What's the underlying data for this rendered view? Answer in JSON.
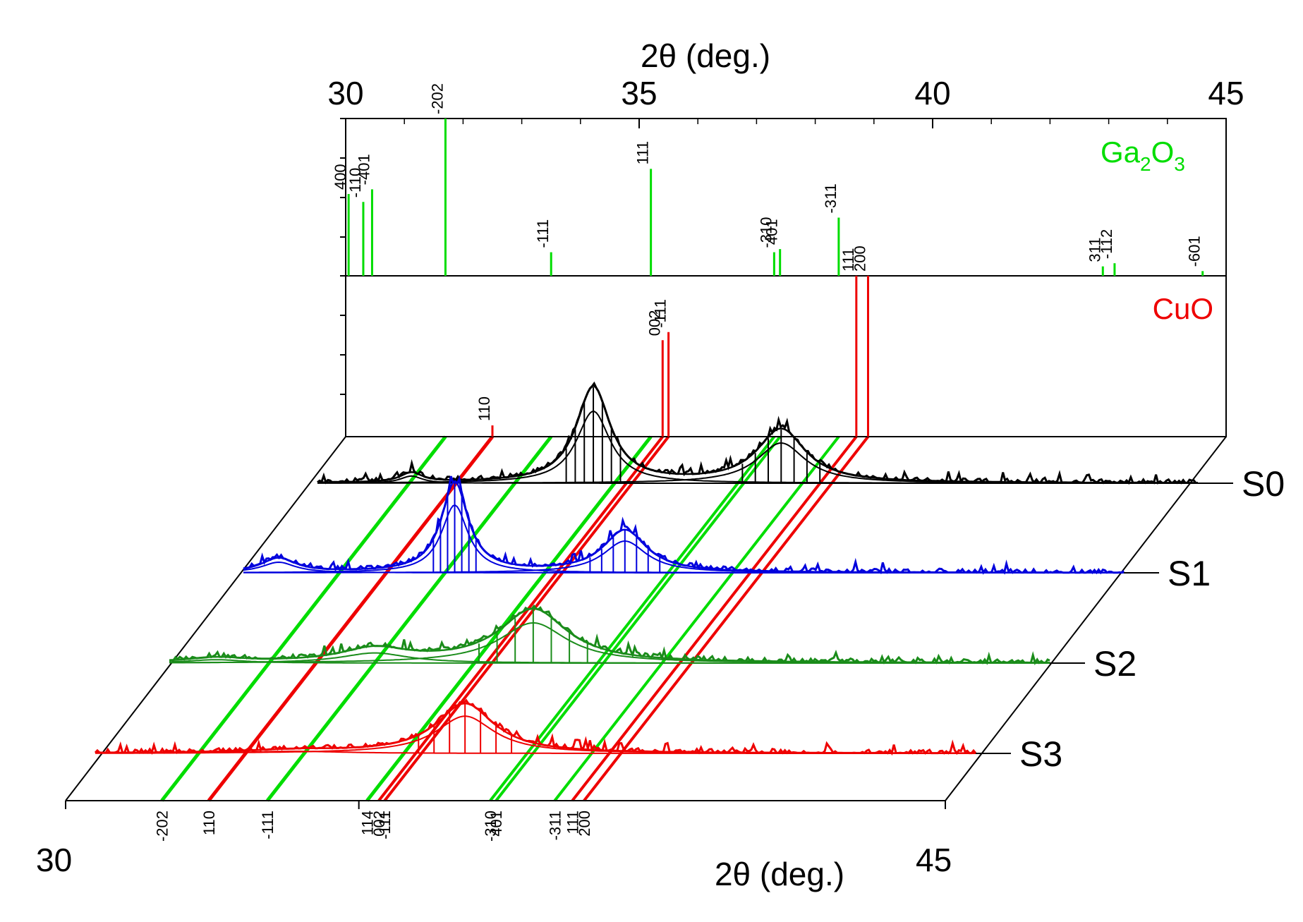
{
  "chart_data": {
    "type": "line",
    "title": "",
    "top_axis": {
      "label": "2θ (deg.)",
      "range": [
        30,
        45
      ],
      "ticks": [
        "30",
        "35",
        "40",
        "45"
      ]
    },
    "bottom_axis": {
      "label": "2θ (deg.)",
      "range": [
        30,
        45
      ],
      "ticks": [
        "30",
        "45"
      ]
    },
    "reference_patterns": [
      {
        "phase": "Ga2O3",
        "phase_main": "Ga",
        "phase_sub1": "2",
        "phase_mid": "O",
        "phase_sub2": "3",
        "color": "#00dd00",
        "peaks": [
          {
            "hkl": "400",
            "two_theta": 30.05,
            "intensity": 0.52
          },
          {
            "hkl": "-110",
            "two_theta": 30.3,
            "intensity": 0.47
          },
          {
            "hkl": "-401",
            "two_theta": 30.45,
            "intensity": 0.55
          },
          {
            "hkl": "-202",
            "two_theta": 31.7,
            "intensity": 1.0
          },
          {
            "hkl": "-111",
            "two_theta": 33.5,
            "intensity": 0.15
          },
          {
            "hkl": "111",
            "two_theta": 35.2,
            "intensity": 0.68
          },
          {
            "hkl": "-310",
            "two_theta": 37.3,
            "intensity": 0.15
          },
          {
            "hkl": "401",
            "two_theta": 37.4,
            "intensity": 0.17
          },
          {
            "hkl": "-311",
            "two_theta": 38.4,
            "intensity": 0.37
          },
          {
            "hkl": "311",
            "two_theta": 42.9,
            "intensity": 0.06
          },
          {
            "hkl": "-112",
            "two_theta": 43.1,
            "intensity": 0.08
          },
          {
            "hkl": "-601",
            "two_theta": 44.6,
            "intensity": 0.03
          }
        ]
      },
      {
        "phase": "CuO",
        "color": "#ee0000",
        "peaks": [
          {
            "hkl": "110",
            "two_theta": 32.5,
            "intensity": 0.07
          },
          {
            "hkl": "002",
            "two_theta": 35.4,
            "intensity": 0.6
          },
          {
            "hkl": "-111",
            "two_theta": 35.5,
            "intensity": 0.65
          },
          {
            "hkl": "111",
            "two_theta": 38.7,
            "intensity": 1.0
          },
          {
            "hkl": "200",
            "two_theta": 38.9,
            "intensity": 1.0
          }
        ]
      }
    ],
    "series": [
      {
        "name": "S0",
        "color": "#000000",
        "peaks": [
          {
            "center": 31.6,
            "height": 0.17,
            "width": 0.45
          },
          {
            "center": 34.7,
            "height": 1.7,
            "width": 0.7
          },
          {
            "center": 37.9,
            "height": 0.95,
            "width": 1.0
          }
        ]
      },
      {
        "name": "S1",
        "color": "#0000dd",
        "peaks": [
          {
            "center": 30.6,
            "height": 0.25,
            "width": 0.7
          },
          {
            "center": 33.6,
            "height": 1.6,
            "width": 0.55
          },
          {
            "center": 36.5,
            "height": 0.75,
            "width": 0.9
          }
        ]
      },
      {
        "name": "S2",
        "color": "#1a8c1a",
        "peaks": [
          {
            "center": 30.8,
            "height": 0.08,
            "width": 1.2
          },
          {
            "center": 33.5,
            "height": 0.24,
            "width": 1.4
          },
          {
            "center": 36.2,
            "height": 0.95,
            "width": 1.4
          }
        ]
      },
      {
        "name": "S3",
        "color": "#ee0000",
        "peaks": [
          {
            "center": 33.4,
            "height": 0.05,
            "width": 2.0
          },
          {
            "center": 36.3,
            "height": 0.88,
            "width": 1.2
          }
        ]
      }
    ],
    "projection_labels": [
      "-202",
      "110",
      "-111",
      "114",
      "002",
      "-111",
      "-310",
      "401",
      "-311",
      "111",
      "200"
    ]
  }
}
